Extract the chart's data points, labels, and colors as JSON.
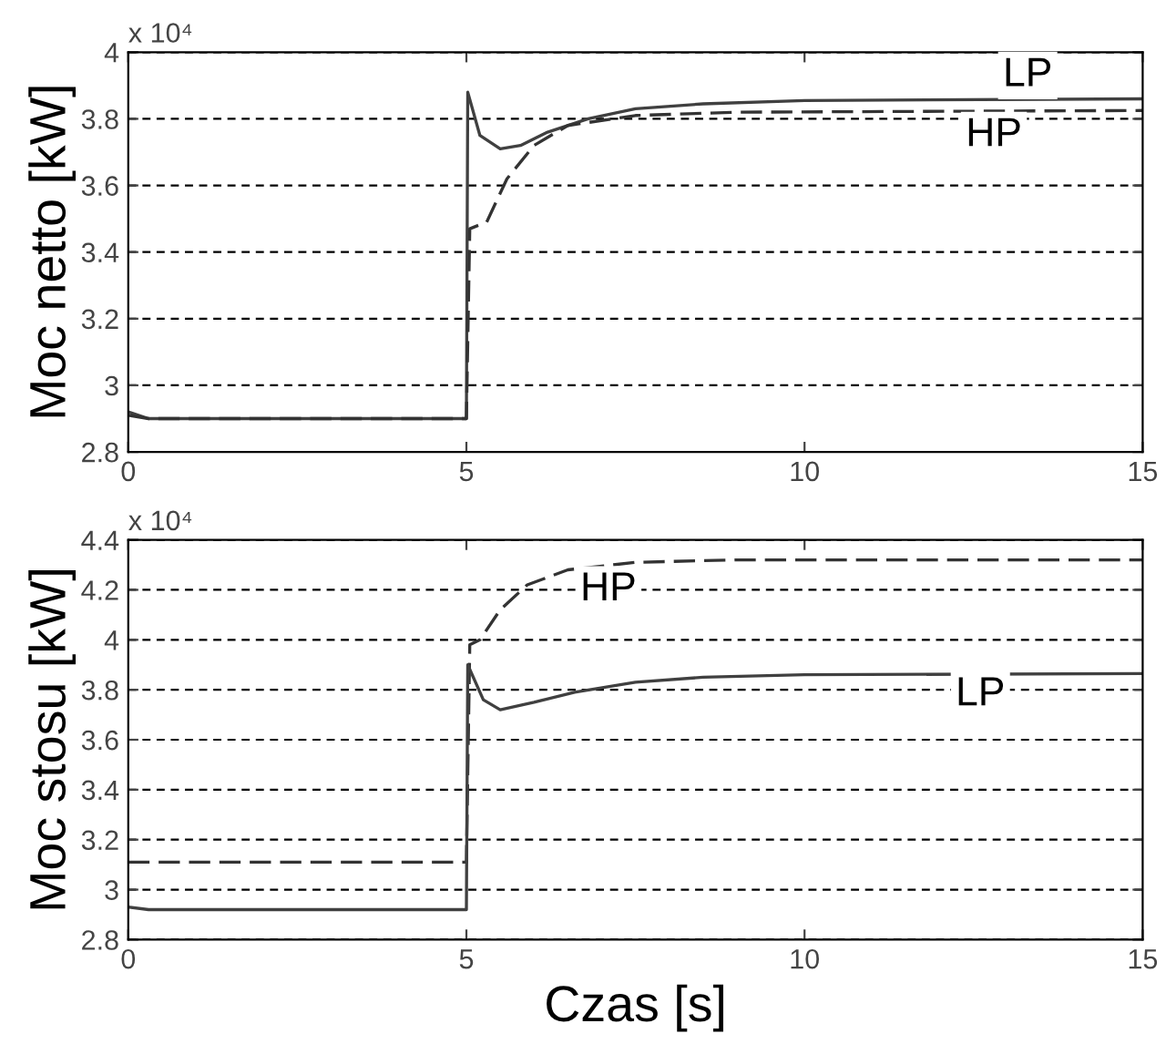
{
  "chart_data": [
    {
      "type": "line",
      "ylabel": "Moc netto [kW]",
      "xlim": [
        0,
        15
      ],
      "xticks": [
        0,
        5,
        10,
        15
      ],
      "ylim": [
        2.8,
        4
      ],
      "yticks": [
        2.8,
        3,
        3.2,
        3.4,
        3.6,
        3.8,
        4
      ],
      "grid": "y",
      "annotations": [
        "x 10⁴",
        {
          "text": "LP",
          "x": 13.3,
          "y": 3.93
        },
        {
          "text": "HP",
          "x": 12.8,
          "y": 3.75
        }
      ],
      "series": [
        {
          "color": "#404040",
          "line_style": "solid",
          "x": [
            0,
            0.3,
            5,
            5.02,
            5.2,
            5.5,
            5.8,
            6.2,
            6.8,
            7.5,
            8.5,
            10,
            15
          ],
          "values": [
            2.92,
            2.9,
            2.9,
            3.88,
            3.75,
            3.71,
            3.72,
            3.76,
            3.8,
            3.83,
            3.845,
            3.855,
            3.86
          ]
        },
        {
          "color": "#333333",
          "line_style": "dashed",
          "x": [
            0,
            0.3,
            5,
            5.05,
            5.3,
            5.6,
            6.0,
            6.5,
            7.5,
            9,
            15
          ],
          "values": [
            2.91,
            2.9,
            2.9,
            3.47,
            3.49,
            3.62,
            3.72,
            3.78,
            3.81,
            3.82,
            3.825
          ]
        }
      ]
    },
    {
      "type": "line",
      "xlabel": "Czas [s]",
      "ylabel": "Moc stosu [kW]",
      "xlim": [
        0,
        15
      ],
      "xticks": [
        0,
        5,
        10,
        15
      ],
      "ylim": [
        2.8,
        4.4
      ],
      "yticks": [
        2.8,
        3,
        3.2,
        3.4,
        3.6,
        3.8,
        4,
        4.2,
        4.4
      ],
      "grid": "y",
      "annotations": [
        "x 10⁴",
        {
          "text": "HP",
          "x": 7.1,
          "y": 4.2
        },
        {
          "text": "LP",
          "x": 12.6,
          "y": 3.78
        }
      ],
      "series": [
        {
          "color": "#333333",
          "line_style": "dashed",
          "x": [
            0,
            5,
            5.05,
            5.2,
            5.5,
            5.9,
            6.5,
            7.5,
            9,
            15
          ],
          "values": [
            3.11,
            3.11,
            3.98,
            4.0,
            4.12,
            4.22,
            4.28,
            4.31,
            4.32,
            4.32
          ]
        },
        {
          "color": "#404040",
          "line_style": "solid",
          "x": [
            0,
            0.3,
            5,
            5.02,
            5.25,
            5.5,
            6,
            6.6,
            7.5,
            8.5,
            10,
            15
          ],
          "values": [
            2.93,
            2.92,
            2.92,
            3.9,
            3.76,
            3.72,
            3.75,
            3.79,
            3.83,
            3.85,
            3.86,
            3.865
          ]
        }
      ]
    }
  ]
}
